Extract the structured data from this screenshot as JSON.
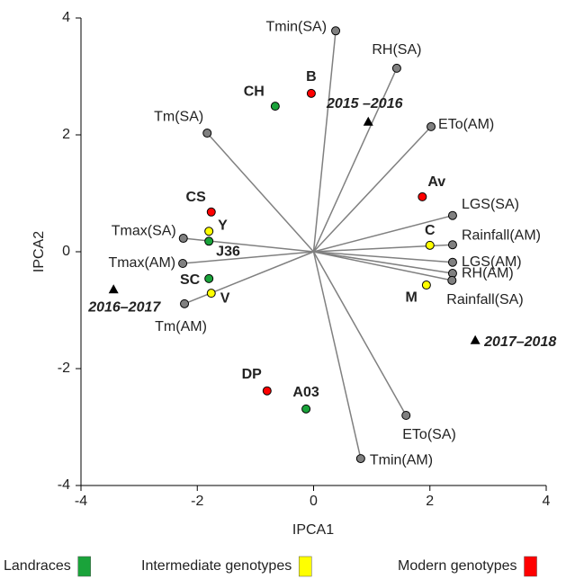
{
  "chart_data": {
    "type": "biplot",
    "xlabel": "IPCA1",
    "ylabel": "IPCA2",
    "xlim": [
      -4,
      4
    ],
    "ylim": [
      -4,
      4
    ],
    "xticks": [
      -4,
      -2,
      0,
      2,
      4
    ],
    "yticks": [
      -4,
      -2,
      0,
      2,
      4
    ],
    "vectors": {
      "color": "#808080",
      "labels": [
        "Tmin(SA)",
        "RH(SA)",
        "ETo(AM)",
        "Tm(SA)",
        "LGS(SA)",
        "Rainfall(AM)",
        "LGS(AM)",
        "RH(AM)",
        "Rainfall(SA)",
        "Tmax(SA)",
        "Tmax(AM)",
        "Tm(AM)",
        "ETo(SA)",
        "Tmin(AM)"
      ],
      "x": [
        0.38,
        1.43,
        2.02,
        -1.83,
        2.39,
        2.39,
        2.39,
        2.39,
        2.38,
        -2.24,
        -2.25,
        -2.22,
        1.59,
        0.81
      ],
      "y": [
        3.78,
        3.14,
        2.14,
        2.03,
        0.62,
        0.12,
        -0.18,
        -0.37,
        -0.49,
        0.23,
        -0.2,
        -0.89,
        -2.8,
        -3.54
      ]
    },
    "environments": {
      "labels": [
        "2015 –2016",
        "2016–2017",
        "2017–2018"
      ],
      "x": [
        0.94,
        -3.44,
        2.78
      ],
      "y": [
        2.22,
        -0.65,
        -1.52
      ]
    },
    "series": [
      {
        "name": "Landraces",
        "color": "#1aa33a",
        "labels": [
          "CH",
          "J36",
          "SC",
          "A03"
        ],
        "label_colors": [
          "#000000",
          "#1a1aff",
          "#1a1aff",
          "#000000"
        ],
        "x": [
          -0.66,
          -1.8,
          -1.8,
          -0.13
        ],
        "y": [
          2.49,
          0.18,
          -0.46,
          -2.69
        ]
      },
      {
        "name": "Intermediate genotypes",
        "color": "#ffff00",
        "labels": [
          "Y",
          "C",
          "M",
          "V"
        ],
        "label_colors": [
          "#000000",
          "#1a1aff",
          "#000000",
          "#1a1aff"
        ],
        "x": [
          -1.8,
          2.0,
          1.94,
          -1.76
        ],
        "y": [
          0.35,
          0.11,
          -0.57,
          -0.71
        ]
      },
      {
        "name": "Modern genotypes",
        "color": "#ff0000",
        "labels": [
          "B",
          "CS",
          "Av",
          "DP"
        ],
        "label_colors": [
          "#000000",
          "#000000",
          "#1a1aff",
          "#1a1aff"
        ],
        "x": [
          -0.04,
          -1.76,
          1.87,
          -0.8
        ],
        "y": [
          2.71,
          0.68,
          0.94,
          -2.38
        ]
      }
    ]
  }
}
